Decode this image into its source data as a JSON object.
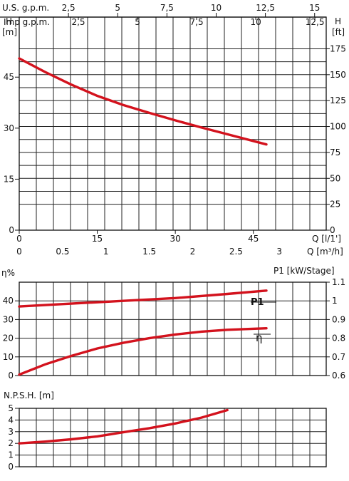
{
  "chart_data": [
    {
      "id": "head",
      "type": "line",
      "ylabel_left": "H",
      "unit_left": "[m]",
      "ylabel_right": "H",
      "unit_right": "[ft]",
      "xlabel_ls": "Q [l/1']",
      "xlabel_m3h": "Q [m³/h]",
      "top_axis_us_label": "U.S. g.p.m.",
      "top_axis_imp_label": "Imp g.p.m.",
      "us_gpm_ticks": [
        "2,5",
        "5",
        "7,5",
        "10",
        "12,5",
        "15"
      ],
      "imp_gpm_ticks": [
        "2,5",
        "5",
        "7,5",
        "10",
        "12,5"
      ],
      "ls_ticks": [
        "0",
        "15",
        "30",
        "45"
      ],
      "m3h_ticks": [
        "0",
        "0.5",
        "1",
        "1.5",
        "2",
        "2.5",
        "3"
      ],
      "m_ticks": [
        "0",
        "15",
        "30",
        "45"
      ],
      "ft_ticks": [
        "0",
        "25",
        "50",
        "75",
        "100",
        "125",
        "150",
        "175"
      ],
      "xlim_ls": [
        0,
        60
      ],
      "ylim_m": [
        0,
        57
      ],
      "series": [
        {
          "x": [
            0,
            5,
            10,
            15,
            20,
            25,
            30,
            35,
            40,
            47.5
          ],
          "y": [
            50.5,
            46.5,
            42.8,
            39.5,
            36.8,
            34.5,
            32.3,
            30.2,
            28.2,
            25.2
          ]
        }
      ]
    },
    {
      "id": "efficiency",
      "type": "line",
      "ylabel_left": "η%",
      "ylabel_right": "P1 [kW/Stage]",
      "left_ticks": [
        "0",
        "10",
        "20",
        "30",
        "40"
      ],
      "right_ticks": [
        "0.6",
        "0.7",
        "0.8",
        "0.9",
        "1",
        "1.1"
      ],
      "xlim_ls": [
        0,
        60
      ],
      "ylim_left": [
        0,
        50
      ],
      "series": [
        {
          "name": "P1",
          "x": [
            0,
            10,
            20,
            30,
            40,
            47.5
          ],
          "y": [
            37,
            38.5,
            40,
            41.5,
            43.7,
            45.5
          ]
        },
        {
          "name": "η",
          "x": [
            0,
            5,
            10,
            15,
            20,
            25,
            30,
            35,
            40,
            47.5
          ],
          "y": [
            0.5,
            6,
            10.5,
            14.5,
            17.5,
            20,
            22,
            23.5,
            24.5,
            25.3
          ]
        }
      ]
    },
    {
      "id": "npsh",
      "type": "line",
      "ylabel_left": "N.P.S.H. [m]",
      "left_ticks": [
        "0",
        "1",
        "2",
        "3",
        "4",
        "5"
      ],
      "xlim_ls": [
        0,
        60
      ],
      "ylim_left": [
        0,
        5
      ],
      "series": [
        {
          "x": [
            0,
            5,
            10,
            15,
            20,
            25,
            30,
            35,
            40
          ],
          "y": [
            2.0,
            2.15,
            2.35,
            2.6,
            2.95,
            3.3,
            3.7,
            4.2,
            4.85
          ]
        }
      ]
    }
  ]
}
